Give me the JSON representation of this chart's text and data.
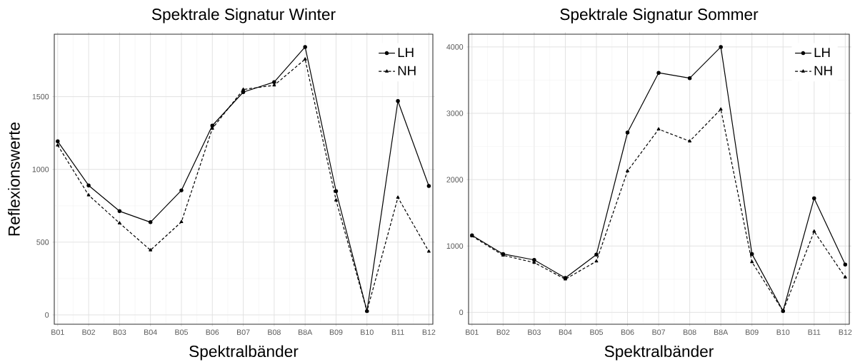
{
  "chart_data": [
    {
      "type": "line",
      "title": "Spektrale Signatur Winter",
      "xlabel": "Spektralbänder",
      "ylabel": "Reflexionswerte",
      "categories": [
        "B01",
        "B02",
        "B03",
        "B04",
        "B05",
        "B06",
        "B07",
        "B08",
        "B8A",
        "B09",
        "B10",
        "B11",
        "B12"
      ],
      "series": [
        {
          "name": "LH",
          "color": "#000000",
          "marker": "circle",
          "line_style": "solid",
          "values": [
            1193,
            890,
            713,
            637,
            856,
            1301,
            1531,
            1600,
            1841,
            850,
            26,
            1470,
            886
          ]
        },
        {
          "name": "NH",
          "color": "#000000",
          "marker": "triangle",
          "line_style": "dashed",
          "values": [
            1166,
            823,
            631,
            445,
            639,
            1281,
            1549,
            1578,
            1757,
            788,
            26,
            807,
            436
          ]
        }
      ],
      "ylim": [
        -64,
        1929
      ],
      "yticks": [
        0,
        500,
        1000,
        1500
      ],
      "grid": true,
      "legend": "top right"
    },
    {
      "type": "line",
      "title": "Spektrale Signatur Sommer",
      "xlabel": "Spektralbänder",
      "categories": [
        "B01",
        "B02",
        "B03",
        "B04",
        "B05",
        "B06",
        "B07",
        "B08",
        "B8A",
        "B09",
        "B10",
        "B11",
        "B12"
      ],
      "series": [
        {
          "name": "LH",
          "color": "#000000",
          "marker": "circle",
          "line_style": "solid",
          "values": [
            1160,
            880,
            790,
            520,
            870,
            2710,
            3610,
            3530,
            4000,
            880,
            20,
            1720,
            720
          ]
        },
        {
          "name": "NH",
          "color": "#000000",
          "marker": "triangle",
          "line_style": "dashed",
          "values": [
            1150,
            860,
            750,
            500,
            770,
            2130,
            2760,
            2580,
            3060,
            760,
            20,
            1220,
            530
          ]
        }
      ],
      "ylim": [
        -179,
        4192
      ],
      "yticks": [
        0,
        1000,
        2000,
        3000,
        4000
      ],
      "grid": true,
      "legend": "top right"
    }
  ]
}
